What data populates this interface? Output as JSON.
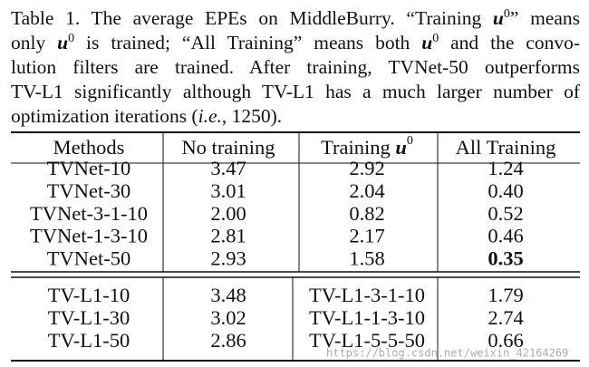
{
  "caption": {
    "lines": [
      [
        "Table 1. The average EPEs on MiddleBurry. “Training ",
        "u",
        "0",
        "” means"
      ],
      [
        "only ",
        "u",
        "0",
        " is trained; “All Training” means both ",
        "u",
        "0",
        " and the convo-"
      ],
      [
        "lution filters are trained.  After training, TVNet-50 outperforms"
      ],
      [
        "TV-L1 significantly although TV-L1 has a much larger number of"
      ],
      [
        "optimization iterations (",
        "i.e.",
        ", 1250)."
      ]
    ]
  },
  "table": {
    "header": [
      "Methods",
      "No training",
      [
        "Training ",
        "u",
        "0"
      ],
      "All Training"
    ],
    "sections": [
      {
        "rows": [
          [
            "TVNet-10",
            "3.47",
            "2.92",
            "1.24"
          ],
          [
            "TVNet-30",
            "3.01",
            "2.04",
            "0.40"
          ],
          [
            "TVNet-3-1-10",
            "2.00",
            "0.82",
            "0.52"
          ],
          [
            "TVNet-1-3-10",
            "2.81",
            "2.17",
            "0.46"
          ],
          [
            "TVNet-50",
            "2.93",
            "1.58",
            "0.35"
          ]
        ],
        "bold_cells": [
          [
            4,
            3
          ]
        ]
      },
      {
        "rows": [
          [
            "TV-L1-10",
            "3.48",
            "TV-L1-3-1-10",
            "1.79"
          ],
          [
            "TV-L1-30",
            "3.02",
            "TV-L1-1-3-10",
            "2.74"
          ],
          [
            "TV-L1-50",
            "2.86",
            "TV-L1-5-5-50",
            "0.66"
          ]
        ],
        "bold_cells": []
      }
    ]
  },
  "watermark": "https://blog.csdn.net/weixin_42164269"
}
